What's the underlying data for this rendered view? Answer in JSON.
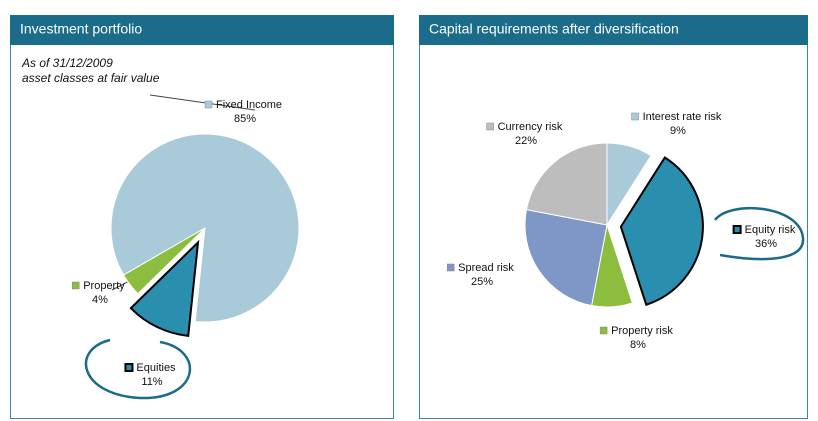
{
  "chart_data": [
    {
      "type": "pie",
      "title": "Investment portfolio",
      "subtitle": [
        "As of 31/12/2009",
        "asset classes at fair value"
      ],
      "categories": [
        "Fixed Income",
        "Property",
        "Equities"
      ],
      "values": [
        85,
        4,
        11
      ],
      "value_labels": [
        "85%",
        "4%",
        "11%"
      ],
      "colors": [
        "#a9cad8",
        "#8dbd3e",
        "#2a8eae"
      ]
    },
    {
      "type": "pie",
      "title": "Capital requirements after diversification",
      "categories": [
        "Interest rate risk",
        "Equity risk",
        "Property risk",
        "Spread risk",
        "Currency risk"
      ],
      "values": [
        9,
        36,
        8,
        25,
        22
      ],
      "value_labels": [
        "9%",
        "36%",
        "8%",
        "25%",
        "22%"
      ],
      "colors": [
        "#a9cad8",
        "#2a8eae",
        "#8dbd3e",
        "#7f97c6",
        "#bdbdbd"
      ]
    }
  ]
}
